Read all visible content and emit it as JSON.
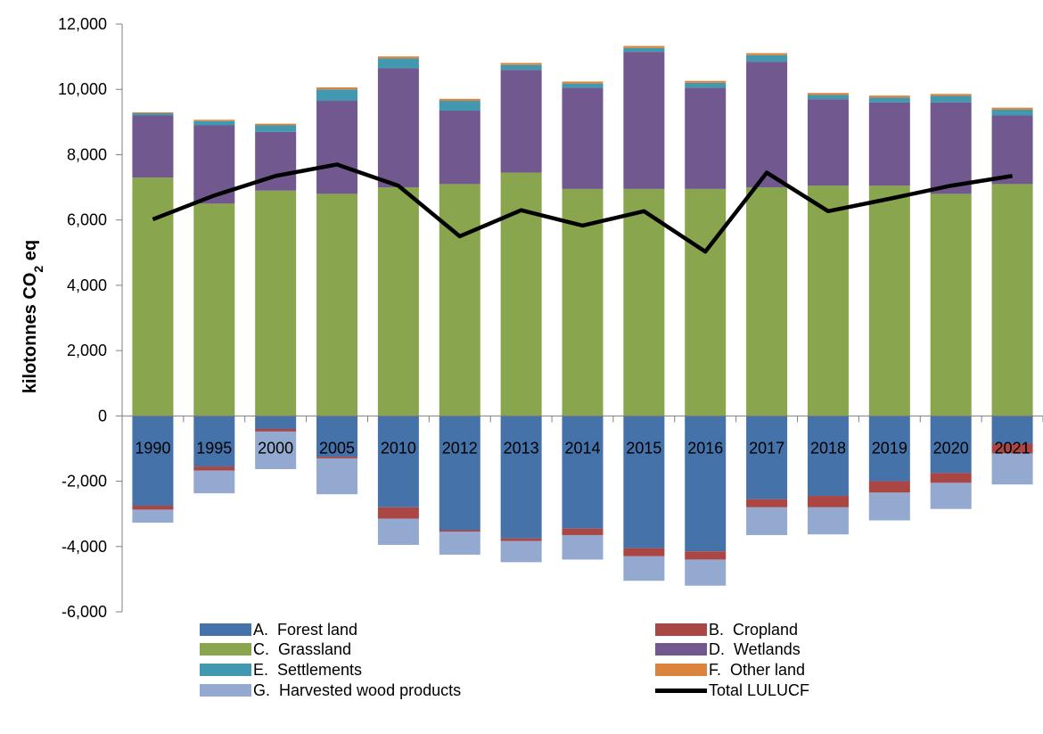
{
  "chart_data": {
    "type": "bar",
    "stacked": true,
    "categories": [
      "1990",
      "1995",
      "2000",
      "2005",
      "2010",
      "2012",
      "2013",
      "2014",
      "2015",
      "2016",
      "2017",
      "2018",
      "2019",
      "2020",
      "2021"
    ],
    "ylabel": "kilotonnes CO",
    "ylabel_sub": "2",
    "ylabel_suffix": " eq",
    "ylim": [
      -6000,
      12000
    ],
    "yticks": [
      -6000,
      -4000,
      -2000,
      0,
      2000,
      4000,
      6000,
      8000,
      10000,
      12000
    ],
    "ytick_labels": [
      "-6,000",
      "-4,000",
      "-2,000",
      "0",
      "2,000",
      "4,000",
      "6,000",
      "8,000",
      "10,000",
      "12,000"
    ],
    "grid": false,
    "legend_position": "bottom",
    "series": [
      {
        "name": "A.  Forest land",
        "color": "#4672AA",
        "values": [
          -2750,
          -1550,
          -400,
          -1250,
          -2800,
          -3500,
          -3750,
          -3450,
          -4050,
          -4150,
          -2550,
          -2450,
          -2000,
          -1750,
          -850
        ]
      },
      {
        "name": "B.  Cropland",
        "color": "#AA4643",
        "values": [
          -120,
          -120,
          -80,
          -50,
          -350,
          -50,
          -80,
          -200,
          -250,
          -250,
          -250,
          -350,
          -350,
          -300,
          -300
        ]
      },
      {
        "name": "C.  Grassland",
        "color": "#89A54E",
        "values": [
          7300,
          6500,
          6900,
          6800,
          7000,
          7100,
          7450,
          6950,
          6950,
          6950,
          7000,
          7050,
          7050,
          6800,
          7100
        ]
      },
      {
        "name": "D.  Wetlands",
        "color": "#71588F",
        "values": [
          1900,
          2400,
          1800,
          2850,
          3650,
          2250,
          3150,
          3100,
          4200,
          3100,
          3850,
          2650,
          2550,
          2800,
          2100
        ]
      },
      {
        "name": "E.  Settlements",
        "color": "#4198AF",
        "values": [
          70,
          130,
          200,
          350,
          300,
          300,
          150,
          130,
          120,
          150,
          200,
          130,
          150,
          200,
          180
        ]
      },
      {
        "name": "F.  Other land",
        "color": "#DB843D",
        "values": [
          30,
          40,
          50,
          60,
          60,
          60,
          60,
          60,
          60,
          60,
          60,
          60,
          60,
          60,
          60
        ]
      },
      {
        "name": "G.  Harvested wood products",
        "color": "#93A9CF",
        "values": [
          -400,
          -700,
          -1150,
          -1100,
          -800,
          -700,
          -650,
          -750,
          -750,
          -800,
          -850,
          -830,
          -850,
          -800,
          -950
        ]
      }
    ],
    "line_series": {
      "name": "Total LULUCF",
      "color": "#000000",
      "values": [
        6020,
        6750,
        7350,
        7700,
        7050,
        5500,
        6300,
        5830,
        6270,
        5030,
        7450,
        6270,
        6650,
        7050,
        7350
      ]
    }
  }
}
